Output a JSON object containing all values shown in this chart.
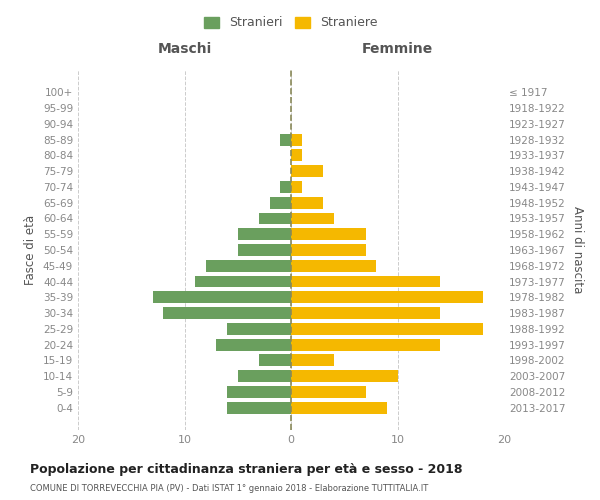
{
  "age_groups": [
    "100+",
    "95-99",
    "90-94",
    "85-89",
    "80-84",
    "75-79",
    "70-74",
    "65-69",
    "60-64",
    "55-59",
    "50-54",
    "45-49",
    "40-44",
    "35-39",
    "30-34",
    "25-29",
    "20-24",
    "15-19",
    "10-14",
    "5-9",
    "0-4"
  ],
  "birth_years": [
    "≤ 1917",
    "1918-1922",
    "1923-1927",
    "1928-1932",
    "1933-1937",
    "1938-1942",
    "1943-1947",
    "1948-1952",
    "1953-1957",
    "1958-1962",
    "1963-1967",
    "1968-1972",
    "1973-1977",
    "1978-1982",
    "1983-1987",
    "1988-1992",
    "1993-1997",
    "1998-2002",
    "2003-2007",
    "2008-2012",
    "2013-2017"
  ],
  "maschi": [
    0,
    0,
    0,
    1,
    0,
    0,
    1,
    2,
    3,
    5,
    5,
    8,
    9,
    13,
    12,
    6,
    7,
    3,
    5,
    6,
    6
  ],
  "femmine": [
    0,
    0,
    0,
    1,
    1,
    3,
    1,
    3,
    4,
    7,
    7,
    8,
    14,
    18,
    14,
    18,
    14,
    4,
    10,
    7,
    9
  ],
  "color_maschi": "#6a9f5e",
  "color_femmine": "#f5b800",
  "title": "Popolazione per cittadinanza straniera per età e sesso - 2018",
  "subtitle": "COMUNE DI TORREVECCHIA PIA (PV) - Dati ISTAT 1° gennaio 2018 - Elaborazione TUTTITALIA.IT",
  "xlabel_left": "Maschi",
  "xlabel_right": "Femmine",
  "ylabel_left": "Fasce di età",
  "ylabel_right": "Anni di nascita",
  "legend_maschi": "Stranieri",
  "legend_femmine": "Straniere",
  "xlim": 20,
  "background_color": "#ffffff",
  "grid_color": "#cccccc"
}
